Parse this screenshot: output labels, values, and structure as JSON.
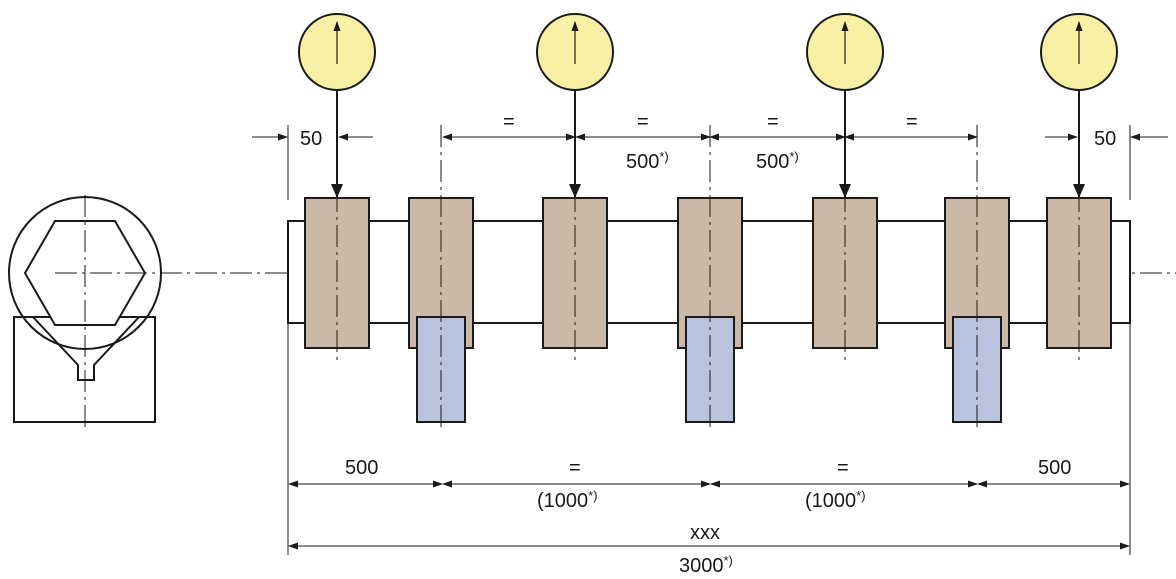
{
  "colors": {
    "ring": "#c9b9a6",
    "support": "#b9c3dd",
    "dial": "#f8f0a4",
    "line": "#1a1a1a"
  },
  "icons": {
    "dial_indicator": "dial-indicator-icon"
  },
  "dimensions": {
    "end_left": "50",
    "end_right": "50",
    "equal_1": "=",
    "equal_2": "=",
    "equal_3": "=",
    "equal_4": "=",
    "half_pitch_1": "500",
    "half_pitch_2": "500",
    "support_end_left": "500",
    "support_end_right": "500",
    "support_equal_1": "=",
    "support_equal_2": "=",
    "support_pitch_1": "(1000",
    "support_pitch_2": "(1000",
    "overall_var": "xxx",
    "overall": "3000",
    "note_mark": "*)"
  }
}
